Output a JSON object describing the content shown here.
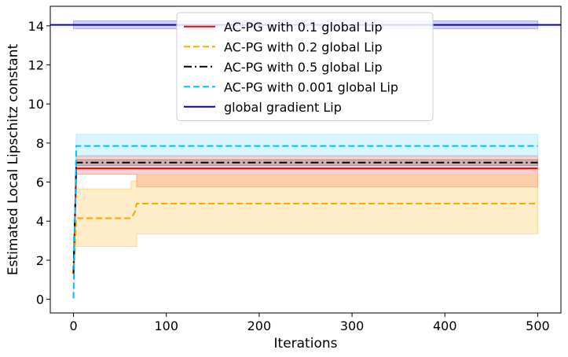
{
  "chart_data": {
    "type": "line",
    "xlabel": "Iterations",
    "ylabel": "Estimated Local Lipschitz constant",
    "xlim": [
      -25,
      525
    ],
    "ylim": [
      -0.7,
      15
    ],
    "xticks": [
      0,
      100,
      200,
      300,
      400,
      500
    ],
    "yticks": [
      0,
      2,
      4,
      6,
      8,
      10,
      12,
      14
    ],
    "xtick_labels": [
      "0",
      "100",
      "200",
      "300",
      "400",
      "500"
    ],
    "ytick_labels": [
      "0",
      "2",
      "4",
      "6",
      "8",
      "10",
      "12",
      "14"
    ],
    "grid": false,
    "legend_position": "top-center",
    "series": [
      {
        "name": "AC-PG with 0.1 global Lip",
        "color": "#ff0000",
        "linestyle": "solid",
        "x": [
          0,
          3,
          500
        ],
        "y": [
          1.3,
          6.7,
          6.7
        ],
        "band": {
          "color": "#ff6666",
          "x": [
            0,
            3,
            62,
            62,
            68,
            68,
            500
          ],
          "upper": [
            1.3,
            7.35,
            7.35,
            7.35,
            7.35,
            7.35,
            7.35
          ],
          "lower": [
            1.3,
            6.4,
            6.4,
            6.4,
            6.4,
            5.75,
            5.75
          ]
        }
      },
      {
        "name": "AC-PG with 0.2 global Lip",
        "color": "#ffa500",
        "linestyle": "dashed",
        "x": [
          0,
          3,
          62,
          66,
          68,
          500
        ],
        "y": [
          1.3,
          4.15,
          4.15,
          4.45,
          4.9,
          4.9
        ],
        "band": {
          "color": "#ffc04d",
          "x": [
            0,
            3,
            62,
            62,
            68,
            68,
            500
          ],
          "upper": [
            1.3,
            5.65,
            5.65,
            6.05,
            6.05,
            6.4,
            6.4
          ],
          "lower": [
            1.3,
            2.7,
            2.7,
            2.7,
            2.7,
            3.35,
            3.35
          ]
        }
      },
      {
        "name": "AC-PG with 0.5 global Lip",
        "color": "#000000",
        "linestyle": "dashdot",
        "x": [
          0,
          3,
          500
        ],
        "y": [
          1.3,
          7.0,
          7.0
        ],
        "band": {
          "color": "#666666",
          "x": [
            0,
            3,
            500
          ],
          "upper": [
            1.3,
            7.15,
            7.15
          ],
          "lower": [
            1.3,
            6.85,
            6.85
          ]
        }
      },
      {
        "name": "AC-PG with 0.001 global Lip",
        "color": "#00bfff",
        "linestyle": "dashed",
        "x": [
          0,
          3,
          500
        ],
        "y": [
          0.05,
          7.85,
          7.85
        ],
        "band": {
          "color": "#80dfff",
          "x": [
            0,
            3,
            500
          ],
          "upper": [
            0.05,
            8.45,
            8.45
          ],
          "lower": [
            0.05,
            7.3,
            7.3
          ]
        }
      },
      {
        "name": "global gradient Lip",
        "color": "#0000cd",
        "linestyle": "solid",
        "x": [
          -25,
          525
        ],
        "y": [
          14.05,
          14.05
        ],
        "band": {
          "color": "#6f6fdd",
          "x": [
            0,
            500
          ],
          "upper": [
            14.25,
            14.25
          ],
          "lower": [
            13.85,
            13.85
          ]
        }
      }
    ]
  }
}
